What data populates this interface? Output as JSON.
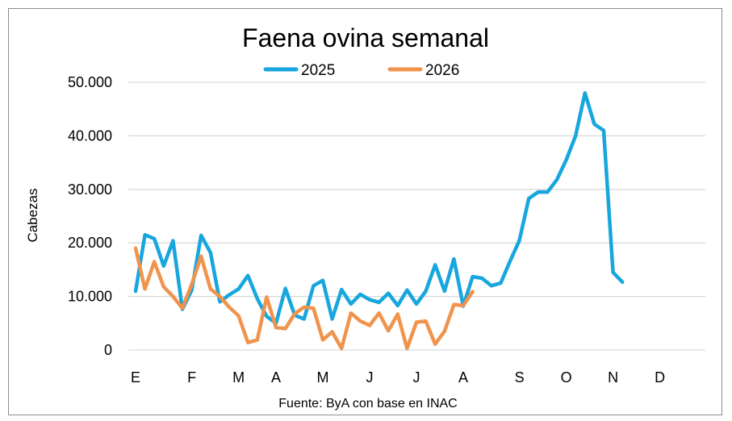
{
  "chart_data": {
    "type": "line",
    "title": "Faena ovina semanal",
    "ylabel": "Cabezas",
    "source": "Fuente: ByA con base en INAC",
    "ylim": [
      0,
      50000
    ],
    "yticks": [
      {
        "value": 0,
        "label": "0"
      },
      {
        "value": 10000,
        "label": "10.000"
      },
      {
        "value": 20000,
        "label": "20.000"
      },
      {
        "value": 30000,
        "label": "30.000"
      },
      {
        "value": 40000,
        "label": "40.000"
      },
      {
        "value": 50000,
        "label": "50.000"
      }
    ],
    "xticks": [
      {
        "week": 1,
        "label": "E"
      },
      {
        "week": 7,
        "label": "F"
      },
      {
        "week": 12,
        "label": "M"
      },
      {
        "week": 16,
        "label": "A"
      },
      {
        "week": 21,
        "label": "M"
      },
      {
        "week": 26,
        "label": "J"
      },
      {
        "week": 31,
        "label": "J"
      },
      {
        "week": 36,
        "label": "A"
      },
      {
        "week": 42,
        "label": "S"
      },
      {
        "week": 47,
        "label": "O"
      },
      {
        "week": 52,
        "label": "N"
      },
      {
        "week": 57,
        "label": "D"
      }
    ],
    "grid": true,
    "legend": "top-center",
    "series": [
      {
        "name": "2025",
        "color": "#17a6dd",
        "values": [
          11000,
          21500,
          20800,
          15700,
          20400,
          7600,
          11200,
          21400,
          18200,
          9000,
          10300,
          11400,
          13900,
          9600,
          6300,
          5000,
          11500,
          6500,
          5800,
          12000,
          13000,
          5800,
          11300,
          8600,
          10400,
          9400,
          8900,
          10600,
          8300,
          11200,
          8600,
          11000,
          15900,
          11000,
          17000,
          8200,
          13700,
          13400,
          12000,
          12500,
          16600,
          20500,
          28300,
          29500,
          29500,
          31800,
          35500,
          40000,
          48000,
          42200,
          41000,
          14500,
          12700
        ]
      },
      {
        "name": "2026",
        "color": "#f0944d",
        "values": [
          19000,
          11400,
          16500,
          11800,
          10000,
          7800,
          12300,
          17500,
          11400,
          10000,
          8000,
          6400,
          1400,
          1900,
          9900,
          4200,
          4000,
          6800,
          8000,
          7800,
          1900,
          3400,
          300,
          6900,
          5400,
          4600,
          6900,
          3600,
          6700,
          300,
          5200,
          5400,
          1100,
          3500,
          8500,
          8300,
          10900
        ]
      }
    ]
  }
}
